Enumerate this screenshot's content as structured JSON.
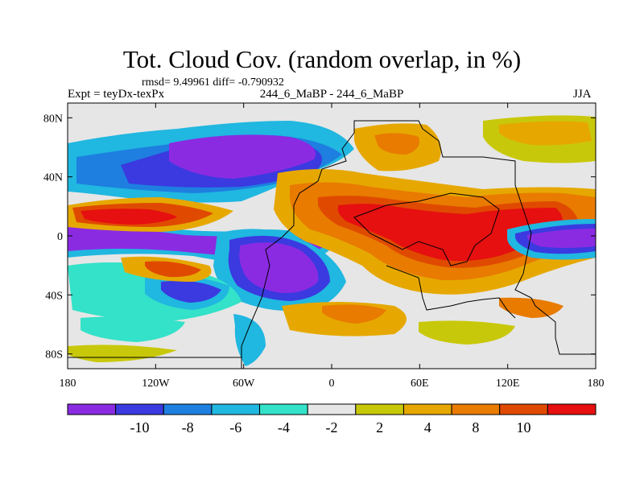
{
  "title": "Tot. Cloud Cov. (random overlap, in %)",
  "subtitle": {
    "stats": "rmsd= 9.49961 diff= -0.790932",
    "left": "Expt = teyDx-texPx",
    "center": "244_6_MaBP - 244_6_MaBP",
    "right": "JJA"
  },
  "map": {
    "lon_ticks": [
      "180",
      "120W",
      "60W",
      "0",
      "60E",
      "120E",
      "180"
    ],
    "lat_ticks": [
      "80N",
      "40N",
      "0",
      "40S",
      "80S"
    ],
    "lon_values": [
      -180,
      -120,
      -60,
      0,
      60,
      120,
      180
    ],
    "lat_values": [
      80,
      40,
      0,
      -40,
      -80
    ],
    "lat_range": [
      -90,
      90
    ],
    "lon_range": [
      -180,
      180
    ]
  },
  "colorbar": {
    "colors": [
      "#8a2be2",
      "#3a3ae0",
      "#1e7fe0",
      "#20b7e0",
      "#33e2c8",
      "#e6e6e6",
      "#c8c80a",
      "#e6a800",
      "#e87b00",
      "#e04a00",
      "#e61010"
    ],
    "labels": [
      "-10",
      "-8",
      "-6",
      "-4",
      "-2",
      "2",
      "4",
      "8",
      "10"
    ]
  },
  "chart_data": {
    "type": "heatmap",
    "title": "Tot. Cloud Cov. (random overlap, in %)",
    "variable": "Total cloud cover difference (%)",
    "levels": [
      -10,
      -8,
      -6,
      -4,
      -2,
      2,
      4,
      8,
      10
    ],
    "x_range": [
      -180,
      180
    ],
    "y_range": [
      -90,
      90
    ],
    "rmsd": 9.49961,
    "diff": -0.790932
  }
}
